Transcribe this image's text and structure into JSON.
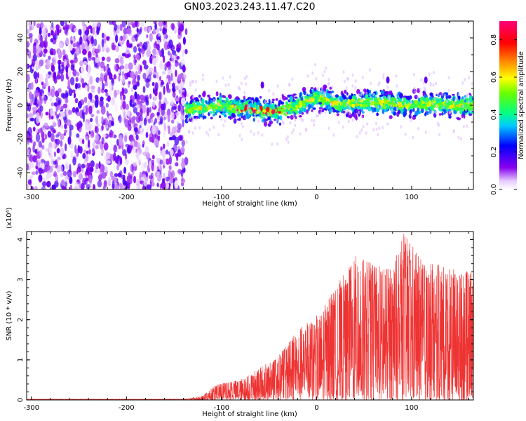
{
  "title": "GN03.2023.243.11.47.C20",
  "chart_data": [
    {
      "type": "heatmap",
      "xlabel": "Height of straight line (km)",
      "ylabel": "Frequency (Hz)",
      "xlim": [
        -305,
        165
      ],
      "ylim": [
        -50,
        50
      ],
      "xticks": [
        -300,
        -200,
        -100,
        0,
        100
      ],
      "yticks": [
        -40,
        -20,
        0,
        20,
        40
      ],
      "colorbar": {
        "label": "Normalized spectral amplitude",
        "range": [
          0,
          0.9
        ],
        "ticks": [
          0.0,
          0.2,
          0.4,
          0.6,
          0.8
        ]
      },
      "regions": [
        {
          "x": [
            -305,
            -137
          ],
          "y": [
            -50,
            50
          ],
          "amplitude_range": [
            0.02,
            0.18
          ]
        },
        {
          "x": [
            -137,
            165
          ],
          "y": [
            -10,
            10
          ],
          "amplitude_range": [
            0.1,
            0.9
          ]
        }
      ],
      "band_center": [
        {
          "x": -135,
          "y": -3
        },
        {
          "x": -100,
          "y": 0
        },
        {
          "x": -80,
          "y": -2
        },
        {
          "x": -60,
          "y": -3
        },
        {
          "x": -40,
          "y": -4
        },
        {
          "x": -20,
          "y": 0
        },
        {
          "x": 0,
          "y": 5
        },
        {
          "x": 20,
          "y": 1
        },
        {
          "x": 40,
          "y": 1
        },
        {
          "x": 60,
          "y": 2
        },
        {
          "x": 80,
          "y": 1
        },
        {
          "x": 100,
          "y": 0
        },
        {
          "x": 120,
          "y": 1
        },
        {
          "x": 140,
          "y": 0
        },
        {
          "x": 165,
          "y": 0
        }
      ],
      "annotations": [
        {
          "x": -57,
          "y": 12,
          "text": ""
        },
        {
          "x": 75,
          "y": 15,
          "text": ""
        },
        {
          "x": 115,
          "y": 15,
          "text": ""
        }
      ]
    },
    {
      "type": "line",
      "xlabel": "Height of straight line (km)",
      "ylabel": "SNR (10 * v/v)",
      "y_multiplier": "(x10⁴)",
      "xlim": [
        -305,
        165
      ],
      "ylim": [
        0,
        4.2
      ],
      "xticks": [
        -300,
        -200,
        -100,
        0,
        100
      ],
      "yticks": [
        0,
        1,
        2,
        3,
        4
      ],
      "color": "#ee3333",
      "envelope": [
        {
          "x": -305,
          "y": 0.02
        },
        {
          "x": -140,
          "y": 0.02
        },
        {
          "x": -120,
          "y": 0.1
        },
        {
          "x": -105,
          "y": 0.4
        },
        {
          "x": -80,
          "y": 0.5
        },
        {
          "x": -60,
          "y": 0.8
        },
        {
          "x": -40,
          "y": 1.1
        },
        {
          "x": -20,
          "y": 1.8
        },
        {
          "x": 0,
          "y": 2.1
        },
        {
          "x": 20,
          "y": 2.8
        },
        {
          "x": 40,
          "y": 3.6
        },
        {
          "x": 60,
          "y": 3.4
        },
        {
          "x": 80,
          "y": 3.3
        },
        {
          "x": 92,
          "y": 4.2
        },
        {
          "x": 110,
          "y": 3.5
        },
        {
          "x": 140,
          "y": 3.3
        },
        {
          "x": 165,
          "y": 3.2
        }
      ]
    }
  ]
}
